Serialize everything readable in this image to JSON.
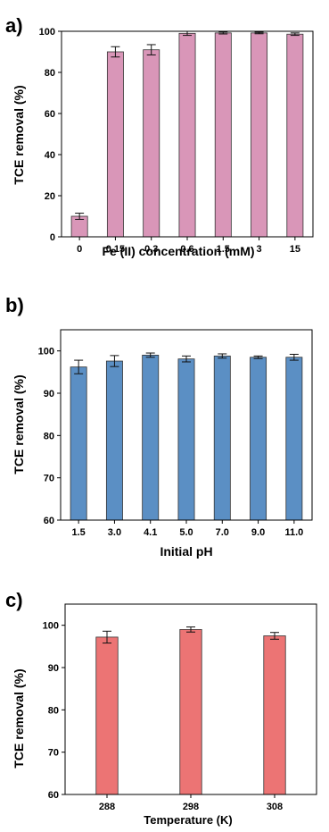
{
  "chart_data": [
    {
      "type": "bar",
      "panel_label": "a)",
      "categories": [
        "0",
        "0.15",
        "0.3",
        "0.6",
        "1.5",
        "3",
        "15"
      ],
      "values": [
        10,
        90,
        91,
        99,
        99.2,
        99.2,
        98.6
      ],
      "errors": [
        1.5,
        2.5,
        2.5,
        1.0,
        0.5,
        0.4,
        0.6
      ],
      "xlabel": "Fe (II) concentration (mM)",
      "ylabel": "TCE removal (%)",
      "ylim": [
        0,
        100
      ],
      "yticks": [
        0,
        20,
        40,
        60,
        80,
        100
      ],
      "ytick_labels": [
        "0",
        "20",
        "40",
        "60",
        "80",
        "100"
      ],
      "bar_color": "#d996b8",
      "grid": false
    },
    {
      "type": "bar",
      "panel_label": "b)",
      "categories": [
        "1.5",
        "3.0",
        "4.1",
        "5.0",
        "7.0",
        "9.0",
        "11.0"
      ],
      "values": [
        96.2,
        97.6,
        99.0,
        98.1,
        98.8,
        98.5,
        98.5
      ],
      "errors": [
        1.6,
        1.3,
        0.5,
        0.7,
        0.5,
        0.3,
        0.7
      ],
      "xlabel": "Initial pH",
      "ylabel": "TCE removal (%)",
      "ylim": [
        60,
        105
      ],
      "yticks": [
        60,
        70,
        80,
        90,
        100
      ],
      "ytick_labels": [
        "60",
        "70",
        "80",
        "90",
        "100"
      ],
      "bar_color": "#5b8fc4",
      "grid": false
    },
    {
      "type": "bar",
      "panel_label": "c)",
      "categories": [
        "288",
        "298",
        "308"
      ],
      "values": [
        97.2,
        99.0,
        97.5
      ],
      "errors": [
        1.4,
        0.6,
        0.8
      ],
      "xlabel": "Temperature (K)",
      "ylabel": "TCE removal (%)",
      "ylim": [
        60,
        105
      ],
      "yticks": [
        60,
        70,
        80,
        90,
        100
      ],
      "ytick_labels": [
        "60",
        "70",
        "80",
        "90",
        "100"
      ],
      "bar_color": "#ec7474",
      "grid": false
    }
  ]
}
